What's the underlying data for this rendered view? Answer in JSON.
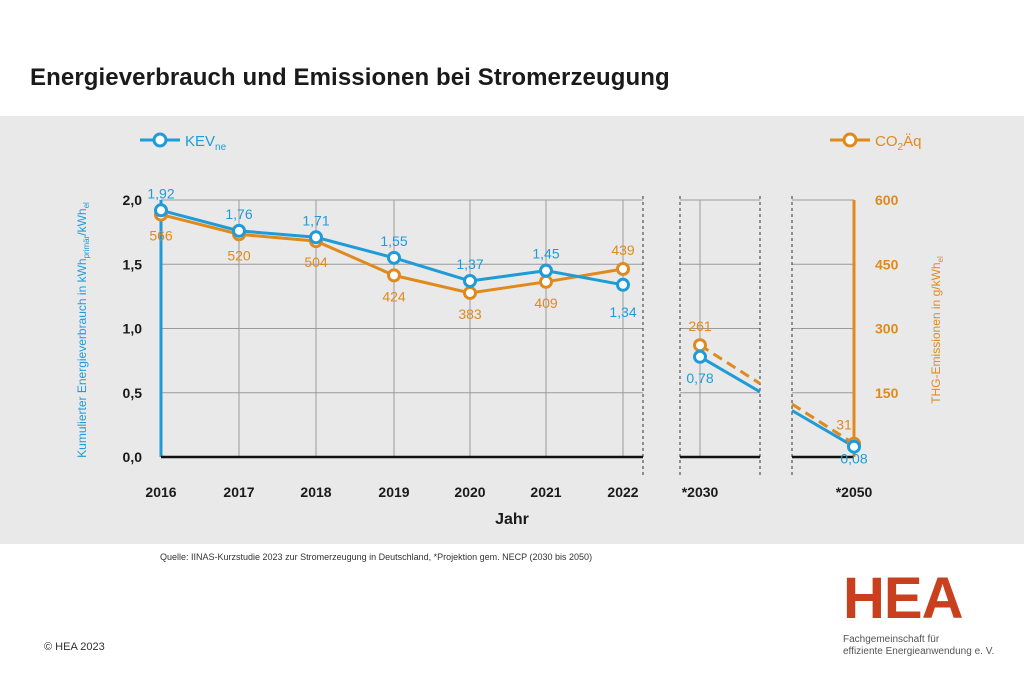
{
  "header": {
    "title": "Energieverbrauch und Emissionen bei Stromerzeugung"
  },
  "footer": {
    "source": "Quelle: IINAS-Kurzstudie 2023 zur Stromerzeugung in Deutschland, *Projektion gem. NECP (2030 bis 2050)",
    "copyright": "© HEA 2023",
    "logo": "HEA",
    "logo_sub_1": "Fachgemeinschaft für",
    "logo_sub_2": "effiziente Energieanwendung e. V."
  },
  "colors": {
    "kev": "#1f9bd7",
    "co2": "#e08a1e",
    "grid": "#9a9a9a",
    "panel": "#e9e9e9"
  },
  "chart_data": {
    "type": "line",
    "title": "Energieverbrauch und Emissionen bei Stromerzeugung",
    "xlabel": "Jahr",
    "ylabel_left": "Kumulierter Energieverbrauch in kWh",
    "ylabel_left_sub1": "primär",
    "ylabel_left_mid": "/kWh",
    "ylabel_left_sub2": "el",
    "ylabel_right": "THG-Emissionen in g/kWh",
    "ylabel_right_sub": "el",
    "ylim_left": [
      0,
      2.0
    ],
    "ylim_right": [
      0,
      600
    ],
    "yticks_left": [
      "0,0",
      "0,5",
      "1,0",
      "1,5",
      "2,0"
    ],
    "yticks_right": [
      "150",
      "300",
      "450",
      "600"
    ],
    "categories": [
      "2016",
      "2017",
      "2018",
      "2019",
      "2020",
      "2021",
      "2022"
    ],
    "projection_labels": [
      "*2030",
      "*2050"
    ],
    "grid": true,
    "legend_position": "top",
    "series": [
      {
        "name": "KEV",
        "name_sub": "ne",
        "axis": "left",
        "values": [
          1.92,
          1.76,
          1.71,
          1.55,
          1.37,
          1.45,
          1.34
        ],
        "labels": [
          "1,92",
          "1,76",
          "1,71",
          "1,55",
          "1,37",
          "1,45",
          "1,34"
        ],
        "projection_values": [
          0.78,
          0.08
        ],
        "projection_labels": [
          "0,78",
          "0,08"
        ]
      },
      {
        "name": "CO",
        "name_sub": "2",
        "name_tail": "Äq",
        "axis": "right",
        "values": [
          566,
          520,
          504,
          424,
          383,
          409,
          439
        ],
        "labels": [
          "566",
          "520",
          "504",
          "424",
          "383",
          "409",
          "439"
        ],
        "projection_values": [
          261,
          31
        ],
        "projection_labels": [
          "261",
          "31"
        ]
      }
    ]
  }
}
